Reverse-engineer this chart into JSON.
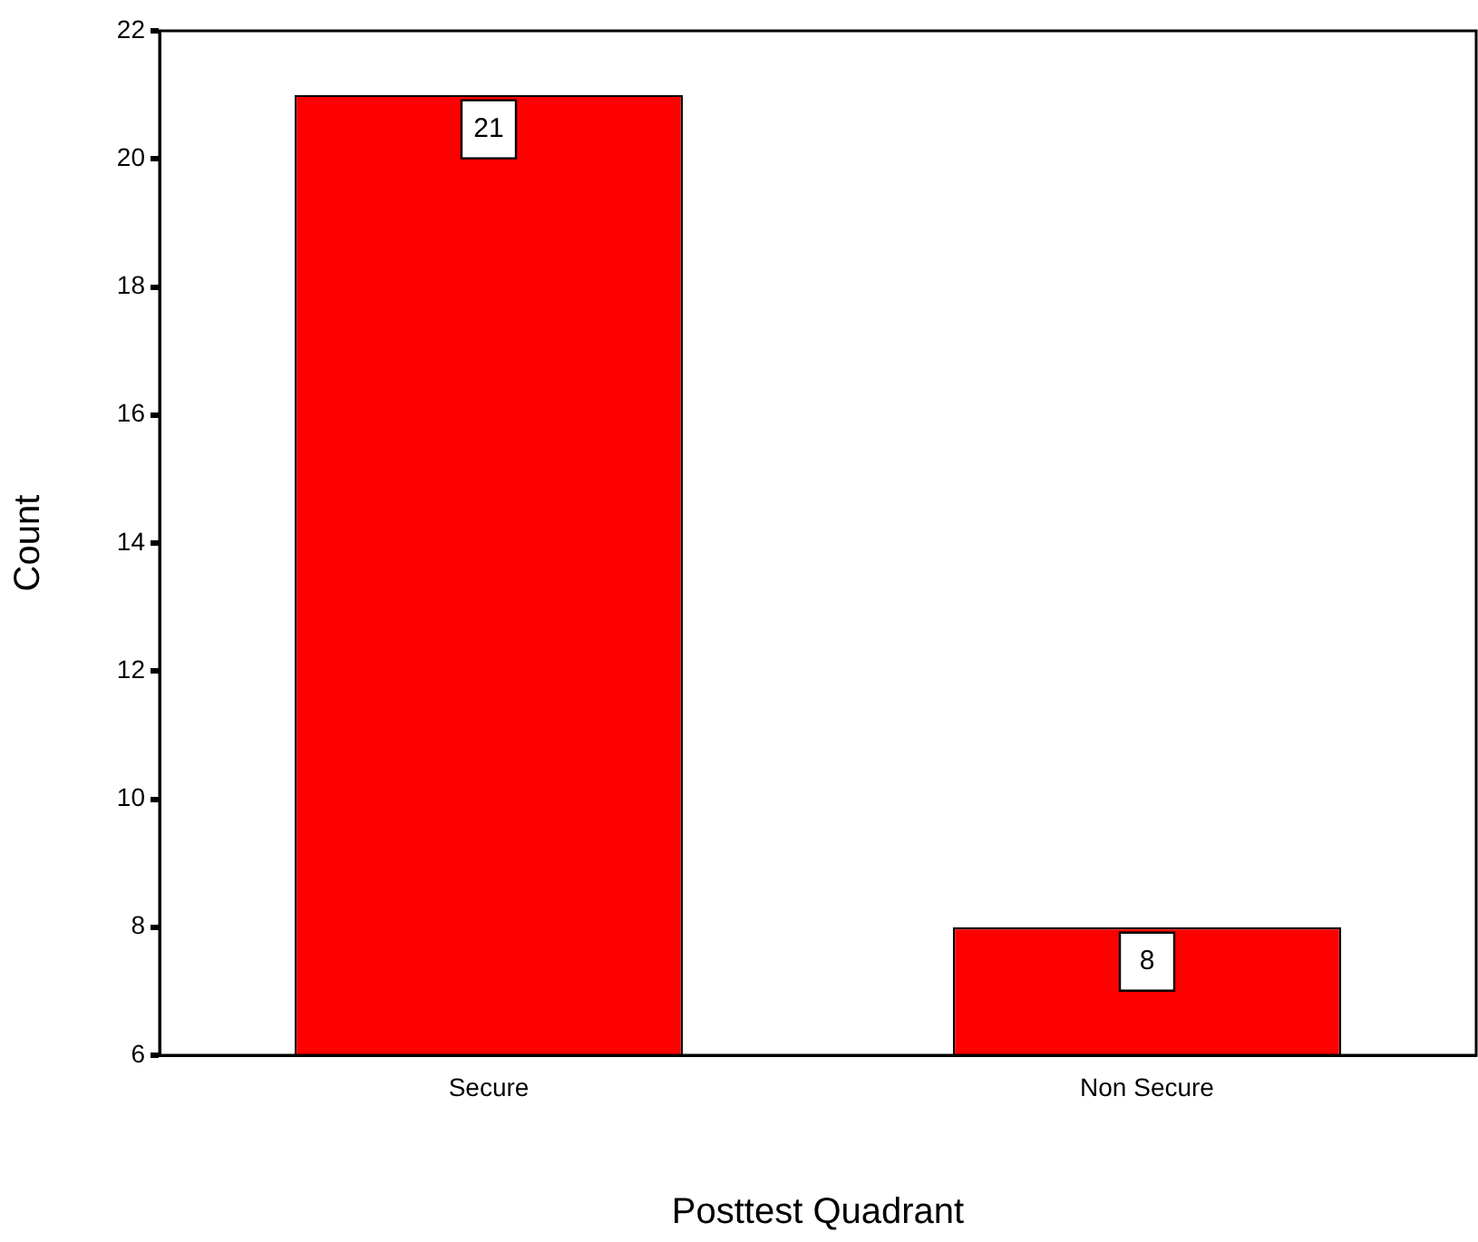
{
  "chart_data": {
    "type": "bar",
    "xlabel": "Posttest Quadrant",
    "ylabel": "Count",
    "categories": [
      "Secure",
      "Non Secure"
    ],
    "values": [
      21,
      8
    ],
    "color": "#ff0000",
    "ylim": [
      6,
      22
    ],
    "yticks": [
      6,
      8,
      10,
      12,
      14,
      16,
      18,
      20,
      22
    ],
    "data_labels": true,
    "grid": false,
    "legend": false
  }
}
